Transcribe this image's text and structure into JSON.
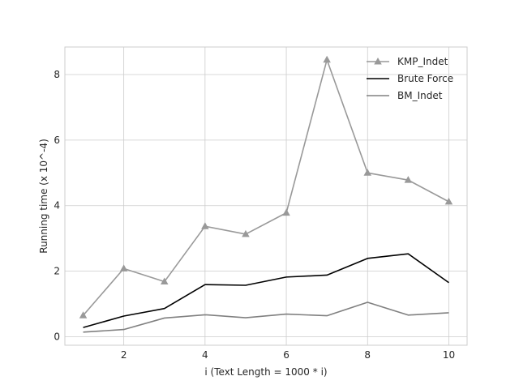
{
  "chart_data": {
    "type": "line",
    "title": "",
    "xlabel": "i (Text Length = 1000 * i)",
    "ylabel": "Running time (x 10^-4)",
    "xlim": [
      0.55,
      10.45
    ],
    "ylim": [
      -0.26,
      8.84
    ],
    "xticks": [
      2,
      4,
      6,
      8,
      10
    ],
    "yticks": [
      0,
      2,
      4,
      6,
      8
    ],
    "grid": true,
    "legend_position": "top-right",
    "x": [
      1,
      2,
      3,
      4,
      5,
      6,
      7,
      8,
      9,
      10
    ],
    "series": [
      {
        "name": "KMP_Indet",
        "values": [
          0.65,
          2.08,
          1.68,
          3.37,
          3.13,
          3.78,
          8.45,
          5.0,
          4.78,
          4.12
        ],
        "color": "#999999",
        "marker": "triangle"
      },
      {
        "name": "Brute Force",
        "values": [
          0.28,
          0.63,
          0.86,
          1.59,
          1.57,
          1.82,
          1.88,
          2.39,
          2.53,
          1.65
        ],
        "color": "#000000",
        "marker": "none"
      },
      {
        "name": "BM_Indet",
        "values": [
          0.14,
          0.22,
          0.57,
          0.67,
          0.58,
          0.69,
          0.64,
          1.05,
          0.66,
          0.73
        ],
        "color": "#808080",
        "marker": "none"
      }
    ]
  }
}
